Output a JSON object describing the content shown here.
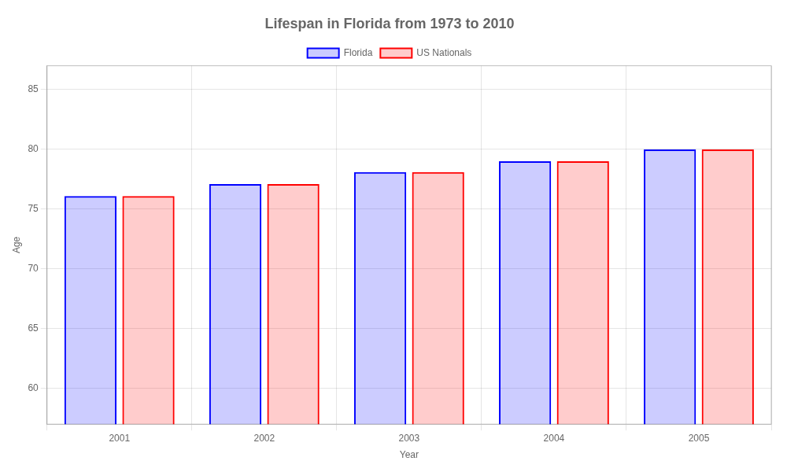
{
  "chart_data": {
    "type": "bar",
    "title": "Lifespan in Florida from 1973 to 2010",
    "x_label": "Year",
    "y_label": "Age",
    "categories": [
      2001,
      2002,
      2003,
      2004,
      2005
    ],
    "series": [
      {
        "name": "Florida",
        "color": "#0000ff",
        "values": [
          76.1,
          77.1,
          78.1,
          79.0,
          80.0
        ]
      },
      {
        "name": "US Nationals",
        "color": "#ff0000",
        "values": [
          76.1,
          77.1,
          78.1,
          79.0,
          80.0
        ]
      }
    ],
    "ylim": [
      57,
      87
    ],
    "yticks": [
      60,
      65,
      70,
      75,
      80,
      85
    ],
    "grid": true,
    "legend": "top"
  }
}
